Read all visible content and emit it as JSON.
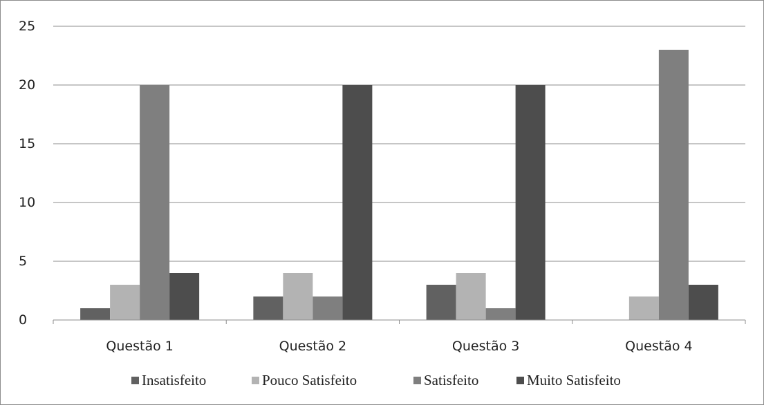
{
  "chart_data": {
    "type": "bar",
    "categories": [
      "Questão 1",
      "Questão 2",
      "Questão 3",
      "Questão 4"
    ],
    "series": [
      {
        "name": "Insatisfeito",
        "values": [
          1,
          2,
          3,
          0
        ],
        "color": "#616161"
      },
      {
        "name": "Pouco Satisfeito",
        "values": [
          3,
          4,
          4,
          2
        ],
        "color": "#b3b3b3"
      },
      {
        "name": "Satisfeito",
        "values": [
          20,
          2,
          1,
          23
        ],
        "color": "#7f7f7f"
      },
      {
        "name": "Muito Satisfeito",
        "values": [
          4,
          20,
          20,
          3
        ],
        "color": "#4d4d4d"
      }
    ],
    "title": "",
    "xlabel": "",
    "ylabel": "",
    "ylim": [
      0,
      25
    ],
    "yticks": [
      "0",
      "5",
      "10",
      "15",
      "20",
      "25"
    ],
    "grid": true,
    "legend_position": "bottom"
  }
}
